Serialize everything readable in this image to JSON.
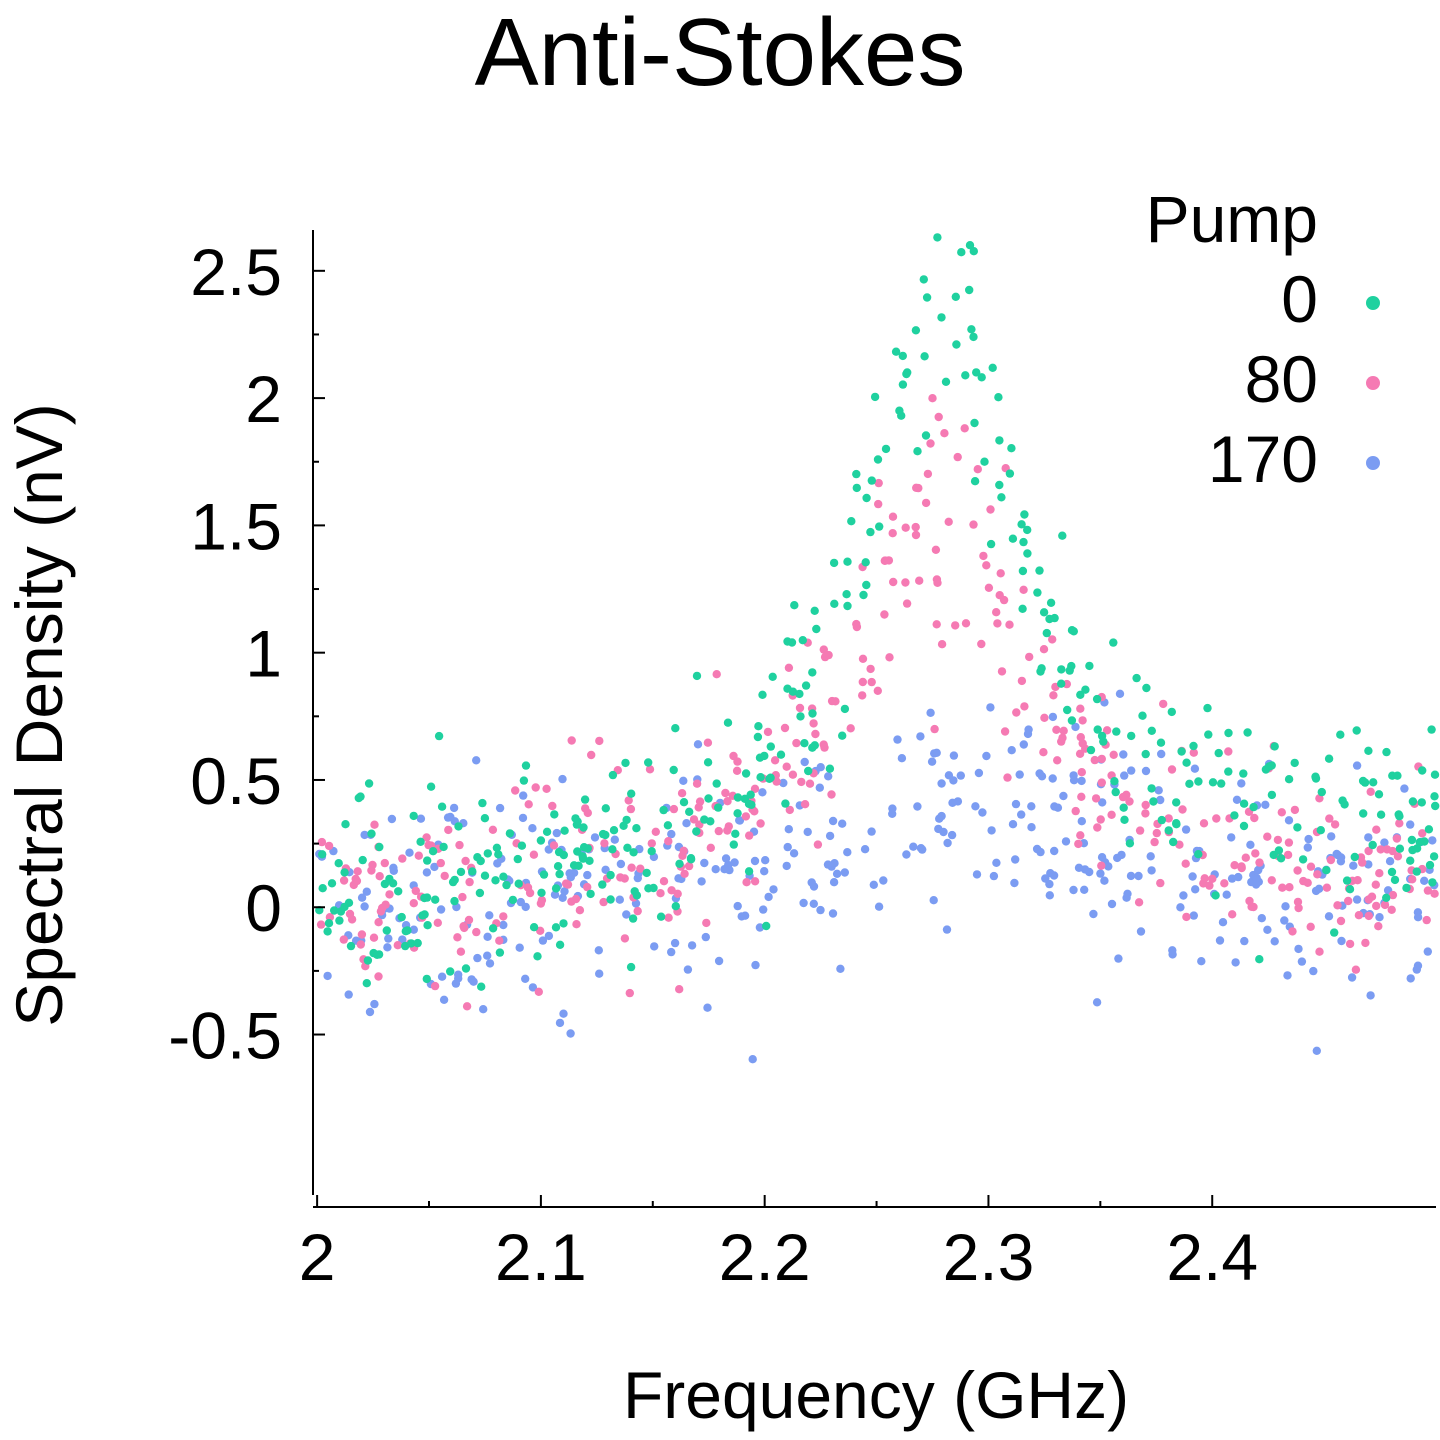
{
  "chart_data": {
    "type": "scatter",
    "title": "Anti-Stokes",
    "xlabel": "Frequency (GHz)",
    "ylabel": "Spectral Density (nV)",
    "xlim": [
      1.9995,
      2.5
    ],
    "ylim": [
      -1.15,
      2.68
    ],
    "x_ticks": [
      2,
      2.1,
      2.2,
      2.3,
      2.4
    ],
    "x_tick_labels": [
      "2",
      "2.1",
      "2.2",
      "2.3",
      "2.4"
    ],
    "y_ticks": [
      -0.5,
      0,
      0.5,
      1,
      1.5,
      2,
      2.5
    ],
    "y_tick_labels": [
      "-0.5",
      "0",
      "0.5",
      "1",
      "1.5",
      "2",
      "2.5"
    ],
    "grid": false,
    "legend": {
      "title": "Pump",
      "placement": "top-right"
    },
    "series": [
      {
        "name": "0",
        "color": "#1fd19f",
        "model": {
          "type": "lorentzian",
          "center": 2.28,
          "width": 0.04,
          "amplitude": 2.25,
          "baseline_start": 0.0,
          "baseline_end": 0.3,
          "x_start": 2.0,
          "x_end": 2.5,
          "points": 400,
          "noise": 0.17
        }
      },
      {
        "name": "80",
        "color": "#f57ab3",
        "model": {
          "type": "lorentzian",
          "center": 2.275,
          "width": 0.05,
          "amplitude": 1.5,
          "baseline_start": 0.0,
          "baseline_end": 0.05,
          "x_start": 2.0,
          "x_end": 2.5,
          "points": 400,
          "noise": 0.2
        }
      },
      {
        "name": "170",
        "color": "#7b9cf2",
        "model": {
          "type": "lorentzian",
          "center": 2.29,
          "width": 0.07,
          "amplitude": 0.45,
          "baseline_start": 0.0,
          "baseline_end": 0.0,
          "x_start": 2.0,
          "x_end": 2.5,
          "points": 400,
          "noise": 0.22
        }
      }
    ]
  }
}
